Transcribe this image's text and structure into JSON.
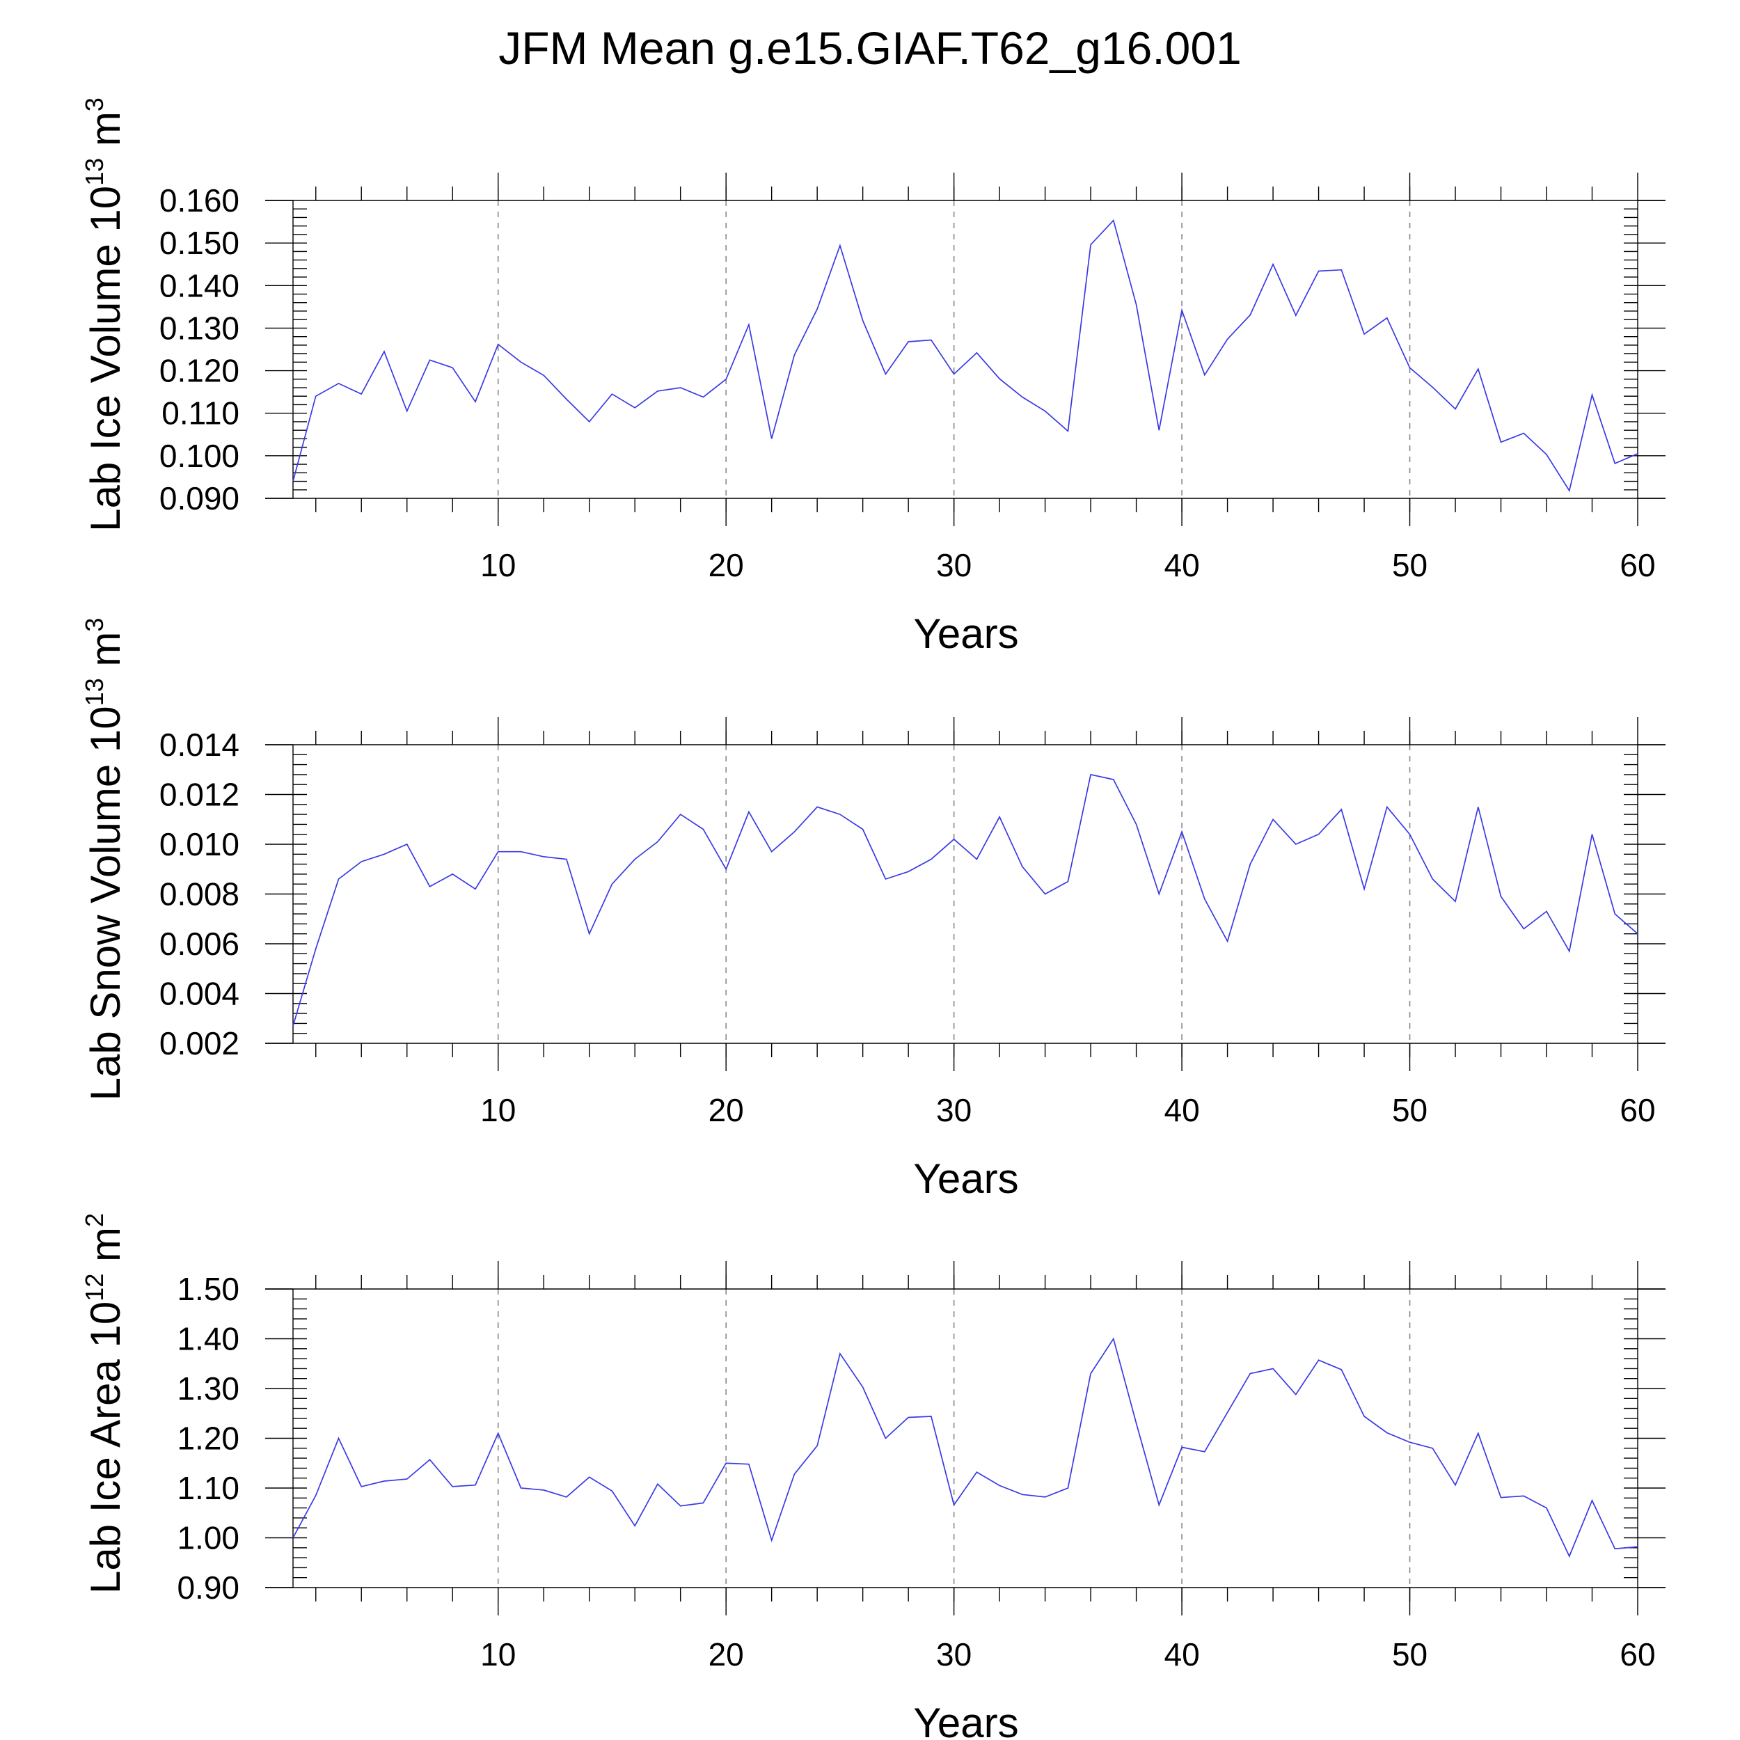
{
  "figure": {
    "title": "JFM Mean g.e15.GIAF.T62_g16.001"
  },
  "chart_data": [
    {
      "type": "line",
      "title": "",
      "ylabel": {
        "base": "Lab Ice Volume 10",
        "exp1": "13",
        "mid": " m",
        "exp2": "3"
      },
      "xlabel": "Years",
      "xlim": [
        1,
        60
      ],
      "ylim": [
        0.09,
        0.16
      ],
      "x_ticks": [
        10,
        20,
        30,
        40,
        50,
        60
      ],
      "x_tick_labels": [
        "10",
        "20",
        "30",
        "40",
        "50",
        "60"
      ],
      "y_ticks": [
        0.09,
        0.1,
        0.11,
        0.12,
        0.13,
        0.14,
        0.15,
        0.16
      ],
      "y_tick_labels": [
        "0.090",
        "0.100",
        "0.110",
        "0.120",
        "0.130",
        "0.140",
        "0.150",
        "0.160"
      ],
      "x_minor_step": 2,
      "y_minor_step": 0.002,
      "grid_x_dashed": [
        10,
        20,
        30,
        40,
        50
      ],
      "series_color": "#3a3ae6",
      "series": [
        {
          "name": "Lab Ice Volume",
          "x": [
            1,
            2,
            3,
            4,
            5,
            6,
            7,
            8,
            9,
            10,
            11,
            12,
            13,
            14,
            15,
            16,
            17,
            18,
            19,
            20,
            21,
            22,
            23,
            24,
            25,
            26,
            27,
            28,
            29,
            30,
            31,
            32,
            33,
            34,
            35,
            36,
            37,
            38,
            39,
            40,
            41,
            42,
            43,
            44,
            45,
            46,
            47,
            48,
            49,
            50,
            51,
            52,
            53,
            54,
            55,
            56,
            57,
            58,
            59,
            60
          ],
          "values": [
            0.094,
            0.114,
            0.117,
            0.1145,
            0.1245,
            0.1105,
            0.1225,
            0.1207,
            0.1127,
            0.1262,
            0.122,
            0.1189,
            0.1133,
            0.108,
            0.1145,
            0.1113,
            0.1152,
            0.116,
            0.1138,
            0.118,
            0.1308,
            0.104,
            0.1237,
            0.1345,
            0.1494,
            0.1318,
            0.1192,
            0.1268,
            0.1272,
            0.1192,
            0.1242,
            0.1181,
            0.1138,
            0.1105,
            0.1058,
            0.1496,
            0.1553,
            0.1355,
            0.106,
            0.1342,
            0.119,
            0.1274,
            0.1331,
            0.145,
            0.133,
            0.1434,
            0.1437,
            0.1286,
            0.1324,
            0.1207,
            0.1161,
            0.111,
            0.1204,
            0.1032,
            0.1053,
            0.1003,
            0.0918,
            0.1143,
            0.0982,
            0.1005
          ]
        }
      ]
    },
    {
      "type": "line",
      "title": "",
      "ylabel": {
        "base": "Lab Snow Volume 10",
        "exp1": "13",
        "mid": " m",
        "exp2": "3"
      },
      "xlabel": "Years",
      "xlim": [
        1,
        60
      ],
      "ylim": [
        0.002,
        0.014
      ],
      "x_ticks": [
        10,
        20,
        30,
        40,
        50,
        60
      ],
      "x_tick_labels": [
        "10",
        "20",
        "30",
        "40",
        "50",
        "60"
      ],
      "y_ticks": [
        0.002,
        0.004,
        0.006,
        0.008,
        0.01,
        0.012,
        0.014
      ],
      "y_tick_labels": [
        "0.002",
        "0.004",
        "0.006",
        "0.008",
        "0.010",
        "0.012",
        "0.014"
      ],
      "x_minor_step": 2,
      "y_minor_step": 0.0004,
      "grid_x_dashed": [
        10,
        20,
        30,
        40,
        50
      ],
      "series_color": "#3a3ae6",
      "series": [
        {
          "name": "Lab Snow Volume",
          "x": [
            1,
            2,
            3,
            4,
            5,
            6,
            7,
            8,
            9,
            10,
            11,
            12,
            13,
            14,
            15,
            16,
            17,
            18,
            19,
            20,
            21,
            22,
            23,
            24,
            25,
            26,
            27,
            28,
            29,
            30,
            31,
            32,
            33,
            34,
            35,
            36,
            37,
            38,
            39,
            40,
            41,
            42,
            43,
            44,
            45,
            46,
            47,
            48,
            49,
            50,
            51,
            52,
            53,
            54,
            55,
            56,
            57,
            58,
            59,
            60
          ],
          "values": [
            0.0027,
            0.0058,
            0.0086,
            0.0093,
            0.0096,
            0.01,
            0.0083,
            0.0088,
            0.0082,
            0.0097,
            0.0097,
            0.0095,
            0.0094,
            0.0064,
            0.0084,
            0.0094,
            0.0101,
            0.0112,
            0.0106,
            0.009,
            0.0113,
            0.0097,
            0.0105,
            0.0115,
            0.0112,
            0.0106,
            0.0086,
            0.0089,
            0.0094,
            0.0102,
            0.0094,
            0.0111,
            0.0091,
            0.008,
            0.0085,
            0.0128,
            0.0126,
            0.0108,
            0.008,
            0.0105,
            0.0078,
            0.0061,
            0.0092,
            0.011,
            0.01,
            0.0104,
            0.0114,
            0.0082,
            0.0115,
            0.0104,
            0.0086,
            0.0077,
            0.0115,
            0.0079,
            0.0066,
            0.0073,
            0.0057,
            0.0104,
            0.0072,
            0.0064
          ]
        }
      ]
    },
    {
      "type": "line",
      "title": "",
      "ylabel": {
        "base": "Lab Ice Area 10",
        "exp1": "12",
        "mid": " m",
        "exp2": "2"
      },
      "xlabel": "Years",
      "xlim": [
        1,
        60
      ],
      "ylim": [
        0.9,
        1.5
      ],
      "x_ticks": [
        10,
        20,
        30,
        40,
        50,
        60
      ],
      "x_tick_labels": [
        "10",
        "20",
        "30",
        "40",
        "50",
        "60"
      ],
      "y_ticks": [
        0.9,
        1.0,
        1.1,
        1.2,
        1.3,
        1.4,
        1.5
      ],
      "y_tick_labels": [
        "0.90",
        "1.00",
        "1.10",
        "1.20",
        "1.30",
        "1.40",
        "1.50"
      ],
      "x_minor_step": 2,
      "y_minor_step": 0.02,
      "grid_x_dashed": [
        10,
        20,
        30,
        40,
        50
      ],
      "series_color": "#3a3ae6",
      "series": [
        {
          "name": "Lab Ice Area",
          "x": [
            1,
            2,
            3,
            4,
            5,
            6,
            7,
            8,
            9,
            10,
            11,
            12,
            13,
            14,
            15,
            16,
            17,
            18,
            19,
            20,
            21,
            22,
            23,
            24,
            25,
            26,
            27,
            28,
            29,
            30,
            31,
            32,
            33,
            34,
            35,
            36,
            37,
            38,
            39,
            40,
            41,
            42,
            43,
            44,
            45,
            46,
            47,
            48,
            49,
            50,
            51,
            52,
            53,
            54,
            55,
            56,
            57,
            58,
            59,
            60
          ],
          "values": [
            1.0,
            1.085,
            1.2,
            1.103,
            1.114,
            1.118,
            1.157,
            1.103,
            1.106,
            1.21,
            1.1,
            1.096,
            1.082,
            1.122,
            1.094,
            1.024,
            1.108,
            1.064,
            1.07,
            1.15,
            1.148,
            0.995,
            1.128,
            1.185,
            1.37,
            1.303,
            1.2,
            1.242,
            1.244,
            1.066,
            1.132,
            1.105,
            1.087,
            1.082,
            1.1,
            1.33,
            1.4,
            1.23,
            1.066,
            1.182,
            1.173,
            1.252,
            1.33,
            1.34,
            1.288,
            1.357,
            1.338,
            1.244,
            1.211,
            1.192,
            1.18,
            1.106,
            1.21,
            1.081,
            1.084,
            1.06,
            0.963,
            1.075,
            0.978,
            0.982
          ]
        }
      ]
    }
  ]
}
